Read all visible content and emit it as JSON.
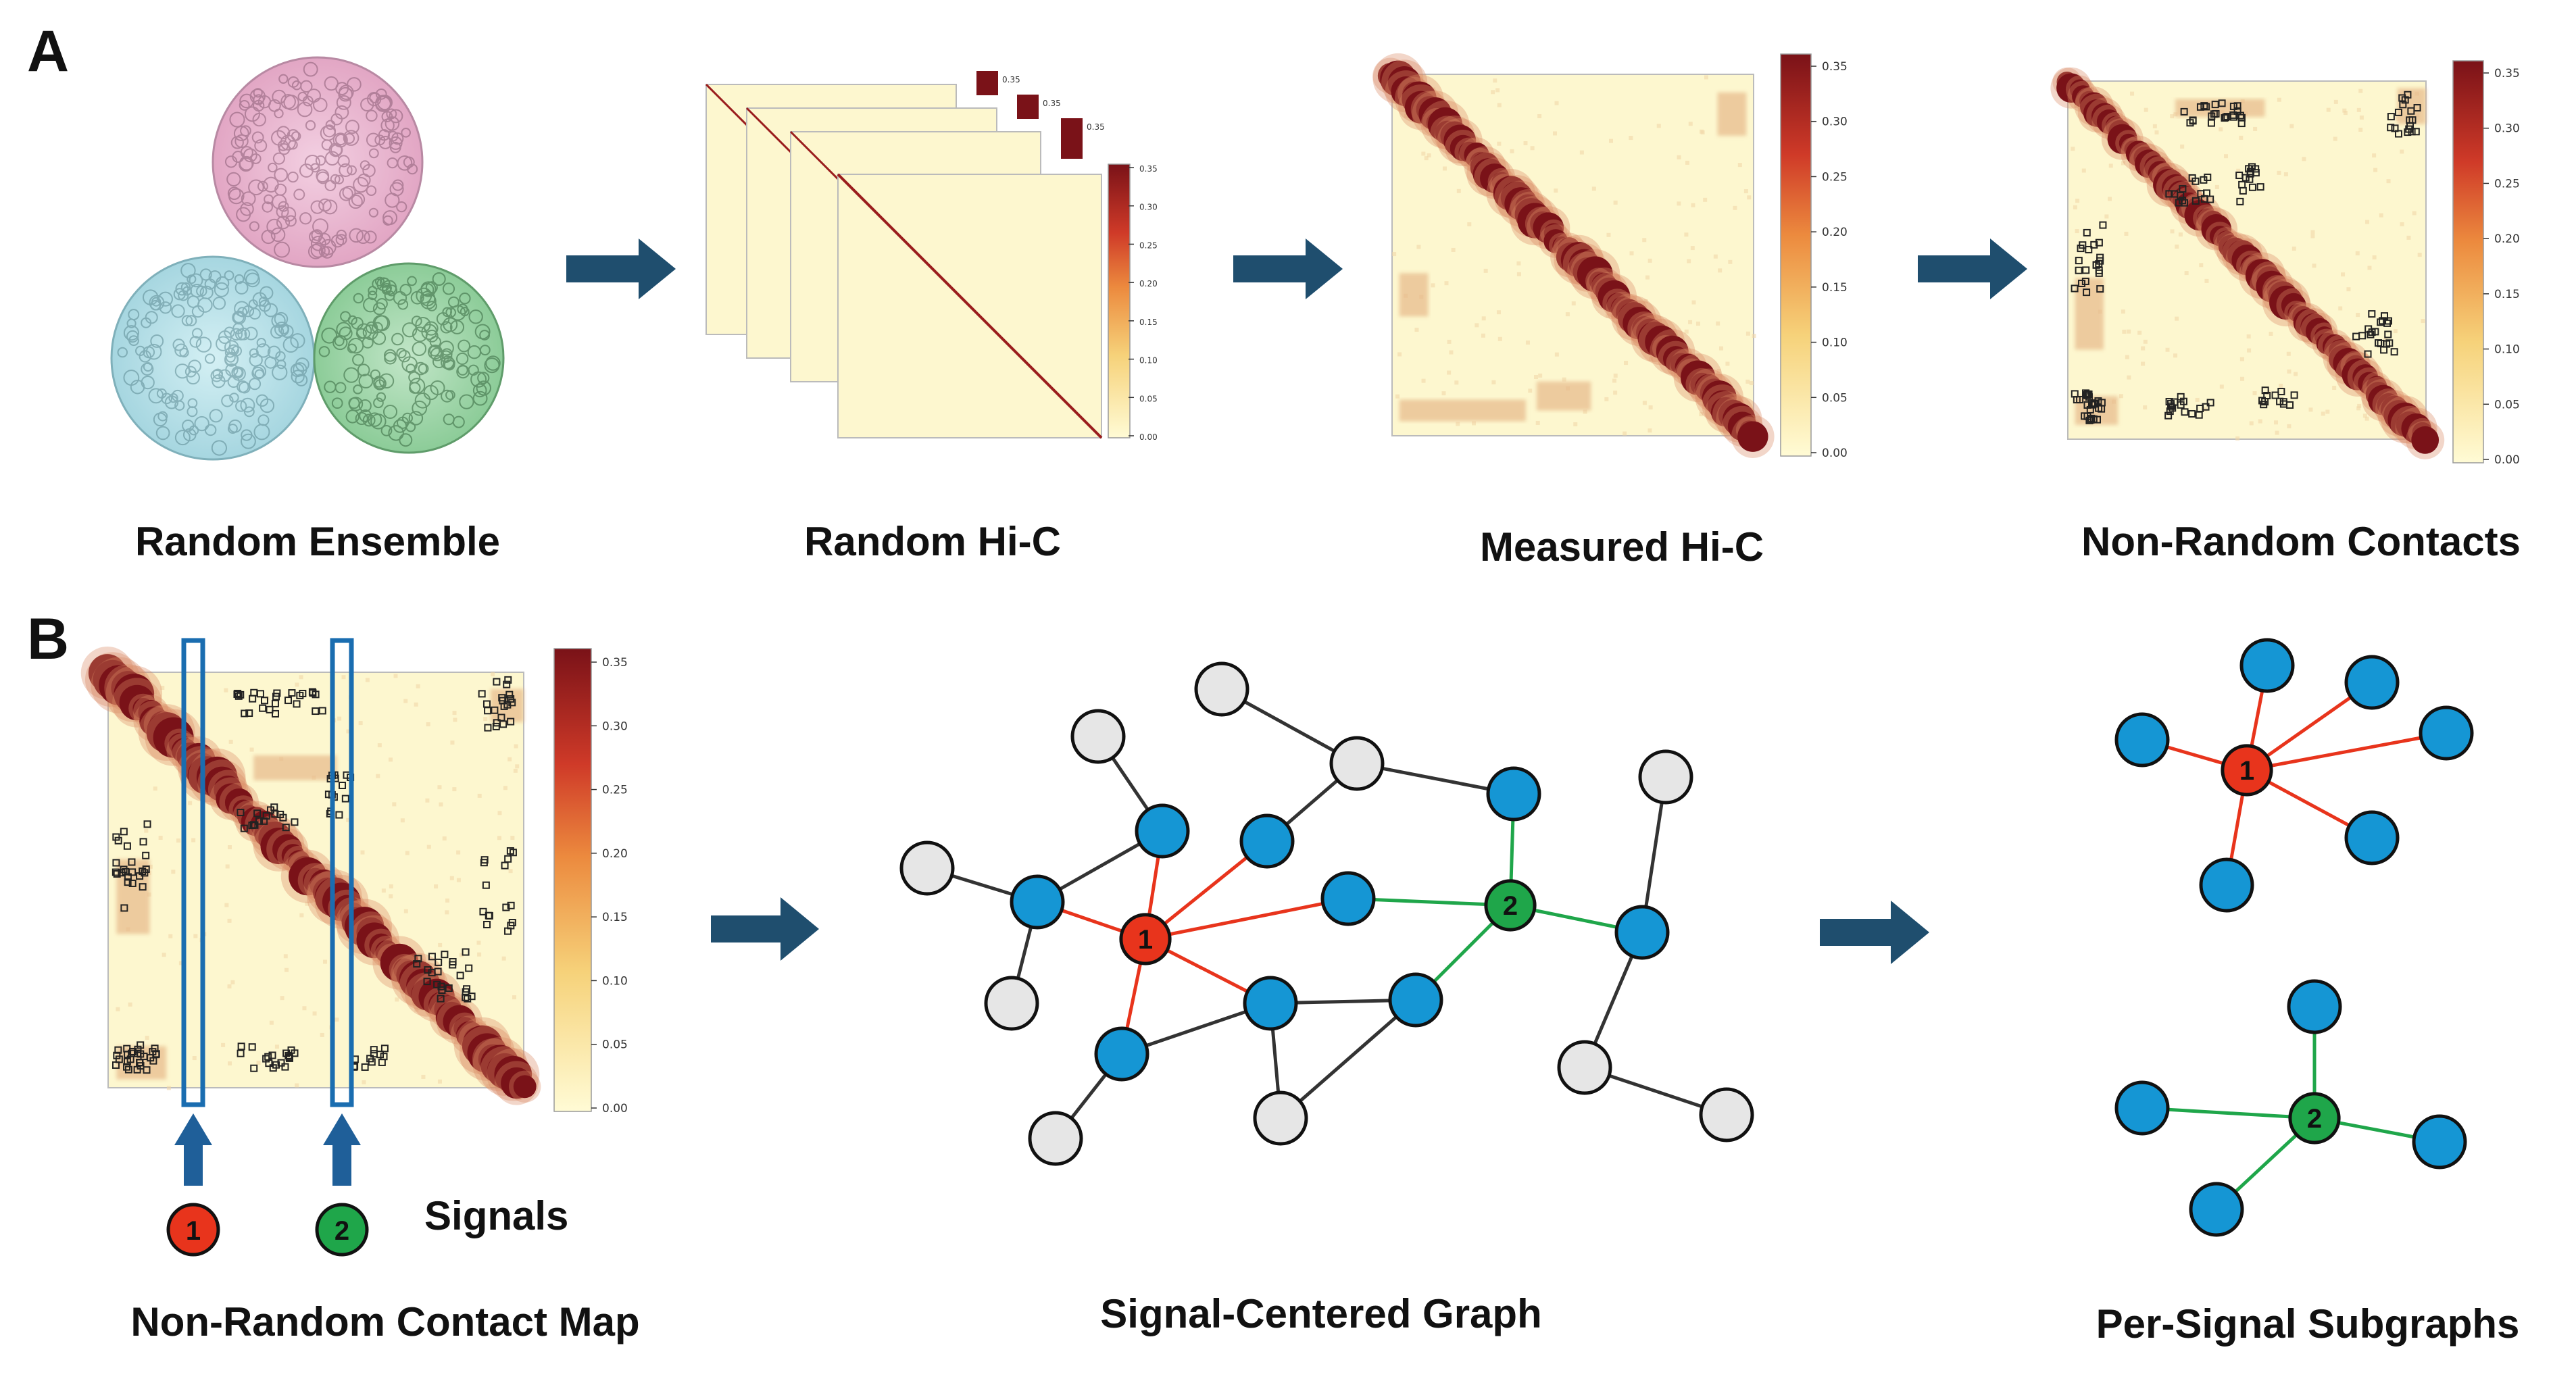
{
  "panels": {
    "a": "A",
    "b": "B"
  },
  "captions": {
    "random_ensemble": "Random Ensemble",
    "random_hic": "Random Hi-C",
    "measured_hic": "Measured Hi-C",
    "nonrandom_contacts": "Non-Random Contacts",
    "nonrandom_map": "Non-Random Contact Map",
    "signal_graph": "Signal-Centered Graph",
    "subgraphs": "Per-Signal Subgraphs",
    "signals": "Signals"
  },
  "colorbar": {
    "ticks": [
      "0.35",
      "0.30",
      "0.25",
      "0.20",
      "0.15",
      "0.10",
      "0.05",
      "0.00"
    ],
    "small_ticks": [
      "0.35",
      "0.30",
      "0.25",
      "0.20",
      "0.15",
      "0.10",
      "0.05",
      "0.00"
    ],
    "stack_top_labels": [
      "0.35",
      "0.35",
      "0.35"
    ]
  },
  "signals": [
    {
      "label": "1",
      "color": "#e8341c"
    },
    {
      "label": "2",
      "color": "#1fa64a"
    }
  ],
  "colors": {
    "arrow": "#1f4e6e",
    "node_blue": "#1596d4",
    "node_gray": "#e6e6e6",
    "edge_red": "#e8341c",
    "edge_green": "#1fa64a",
    "edge_dark": "#333333",
    "heat_dark": "#7a1218",
    "heat_light": "#fdf7cf",
    "highlight_box": "#1a6db0",
    "protein_pink": "#e9b4cf",
    "protein_cyan": "#b5e2ea",
    "protein_green": "#9ed6a8"
  }
}
